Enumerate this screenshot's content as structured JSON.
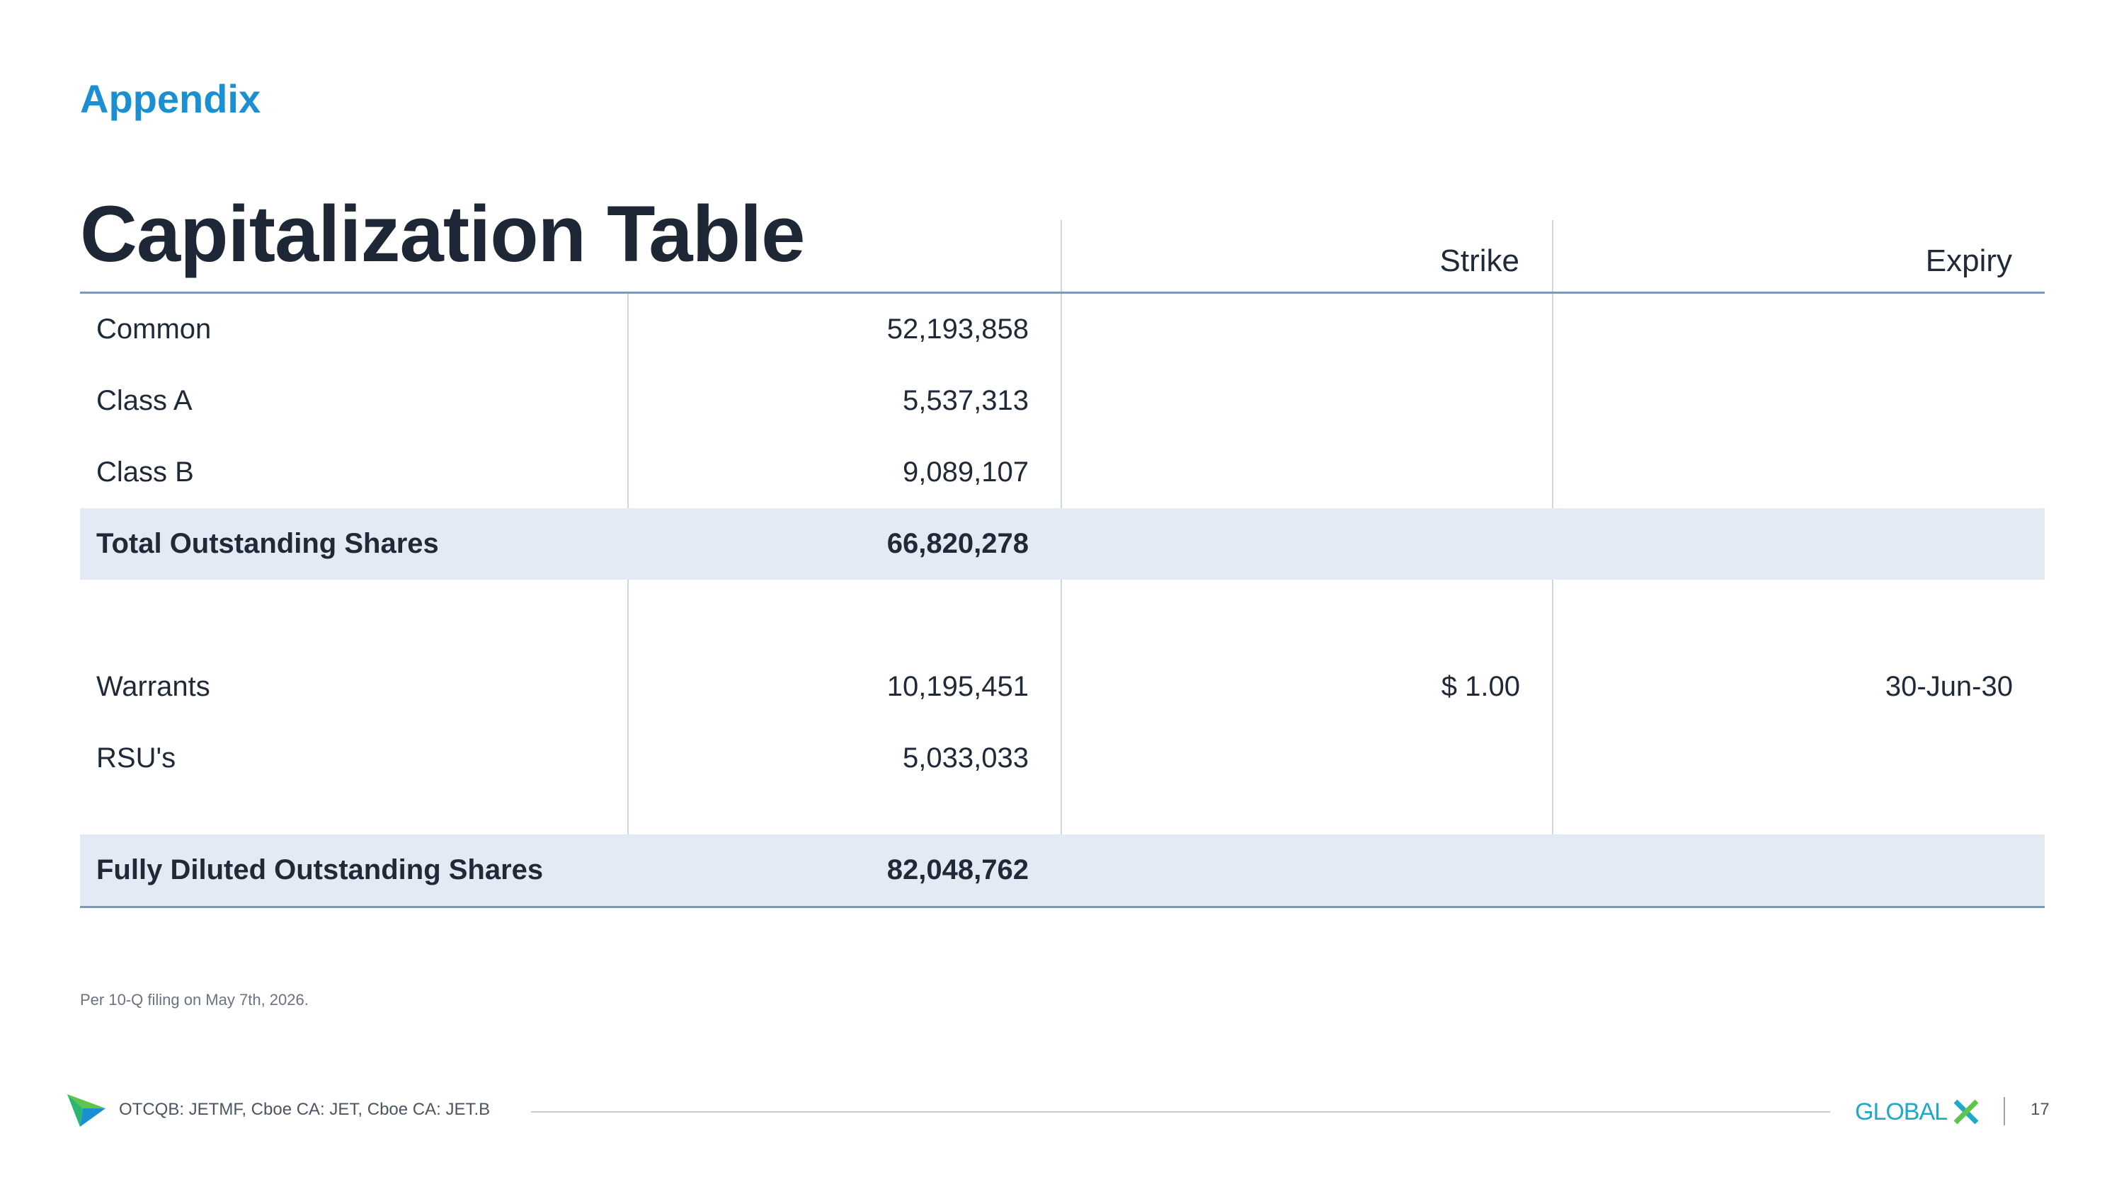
{
  "section_label": "Appendix",
  "title": "Capitalization Table",
  "table": {
    "headers": {
      "strike": "Strike",
      "expiry": "Expiry"
    },
    "rows": [
      {
        "label": "Common",
        "shares": "52,193,858",
        "strike": "",
        "expiry": ""
      },
      {
        "label": "Class A",
        "shares": "5,537,313",
        "strike": "",
        "expiry": ""
      },
      {
        "label": "Class B",
        "shares": "9,089,107",
        "strike": "",
        "expiry": ""
      },
      {
        "label": "Total Outstanding Shares",
        "shares": "66,820,278",
        "strike": "",
        "expiry": ""
      },
      {
        "label": "Warrants",
        "shares": "10,195,451",
        "strike": "$ 1.00",
        "expiry": "30-Jun-30"
      },
      {
        "label": "RSU's",
        "shares": "5,033,033",
        "strike": "",
        "expiry": ""
      },
      {
        "label": "Fully Diluted Outstanding Shares",
        "shares": "82,048,762",
        "strike": "",
        "expiry": ""
      }
    ]
  },
  "footnote": "Per 10-Q filing on May 7th, 2026.",
  "footer": {
    "ticker_text": "OTCQB: JETMF, Cboe CA: JET, Cboe CA: JET.B",
    "logo_text": "GLOBALX",
    "page_number": "17"
  },
  "colors": {
    "accent": "#1a8fd1",
    "title": "#1d2736",
    "total_row_bg": "#e3eaf3",
    "rule": "#7f98b6",
    "logo_teal": "#1fa8c9",
    "logo_green": "#5cc64a"
  }
}
